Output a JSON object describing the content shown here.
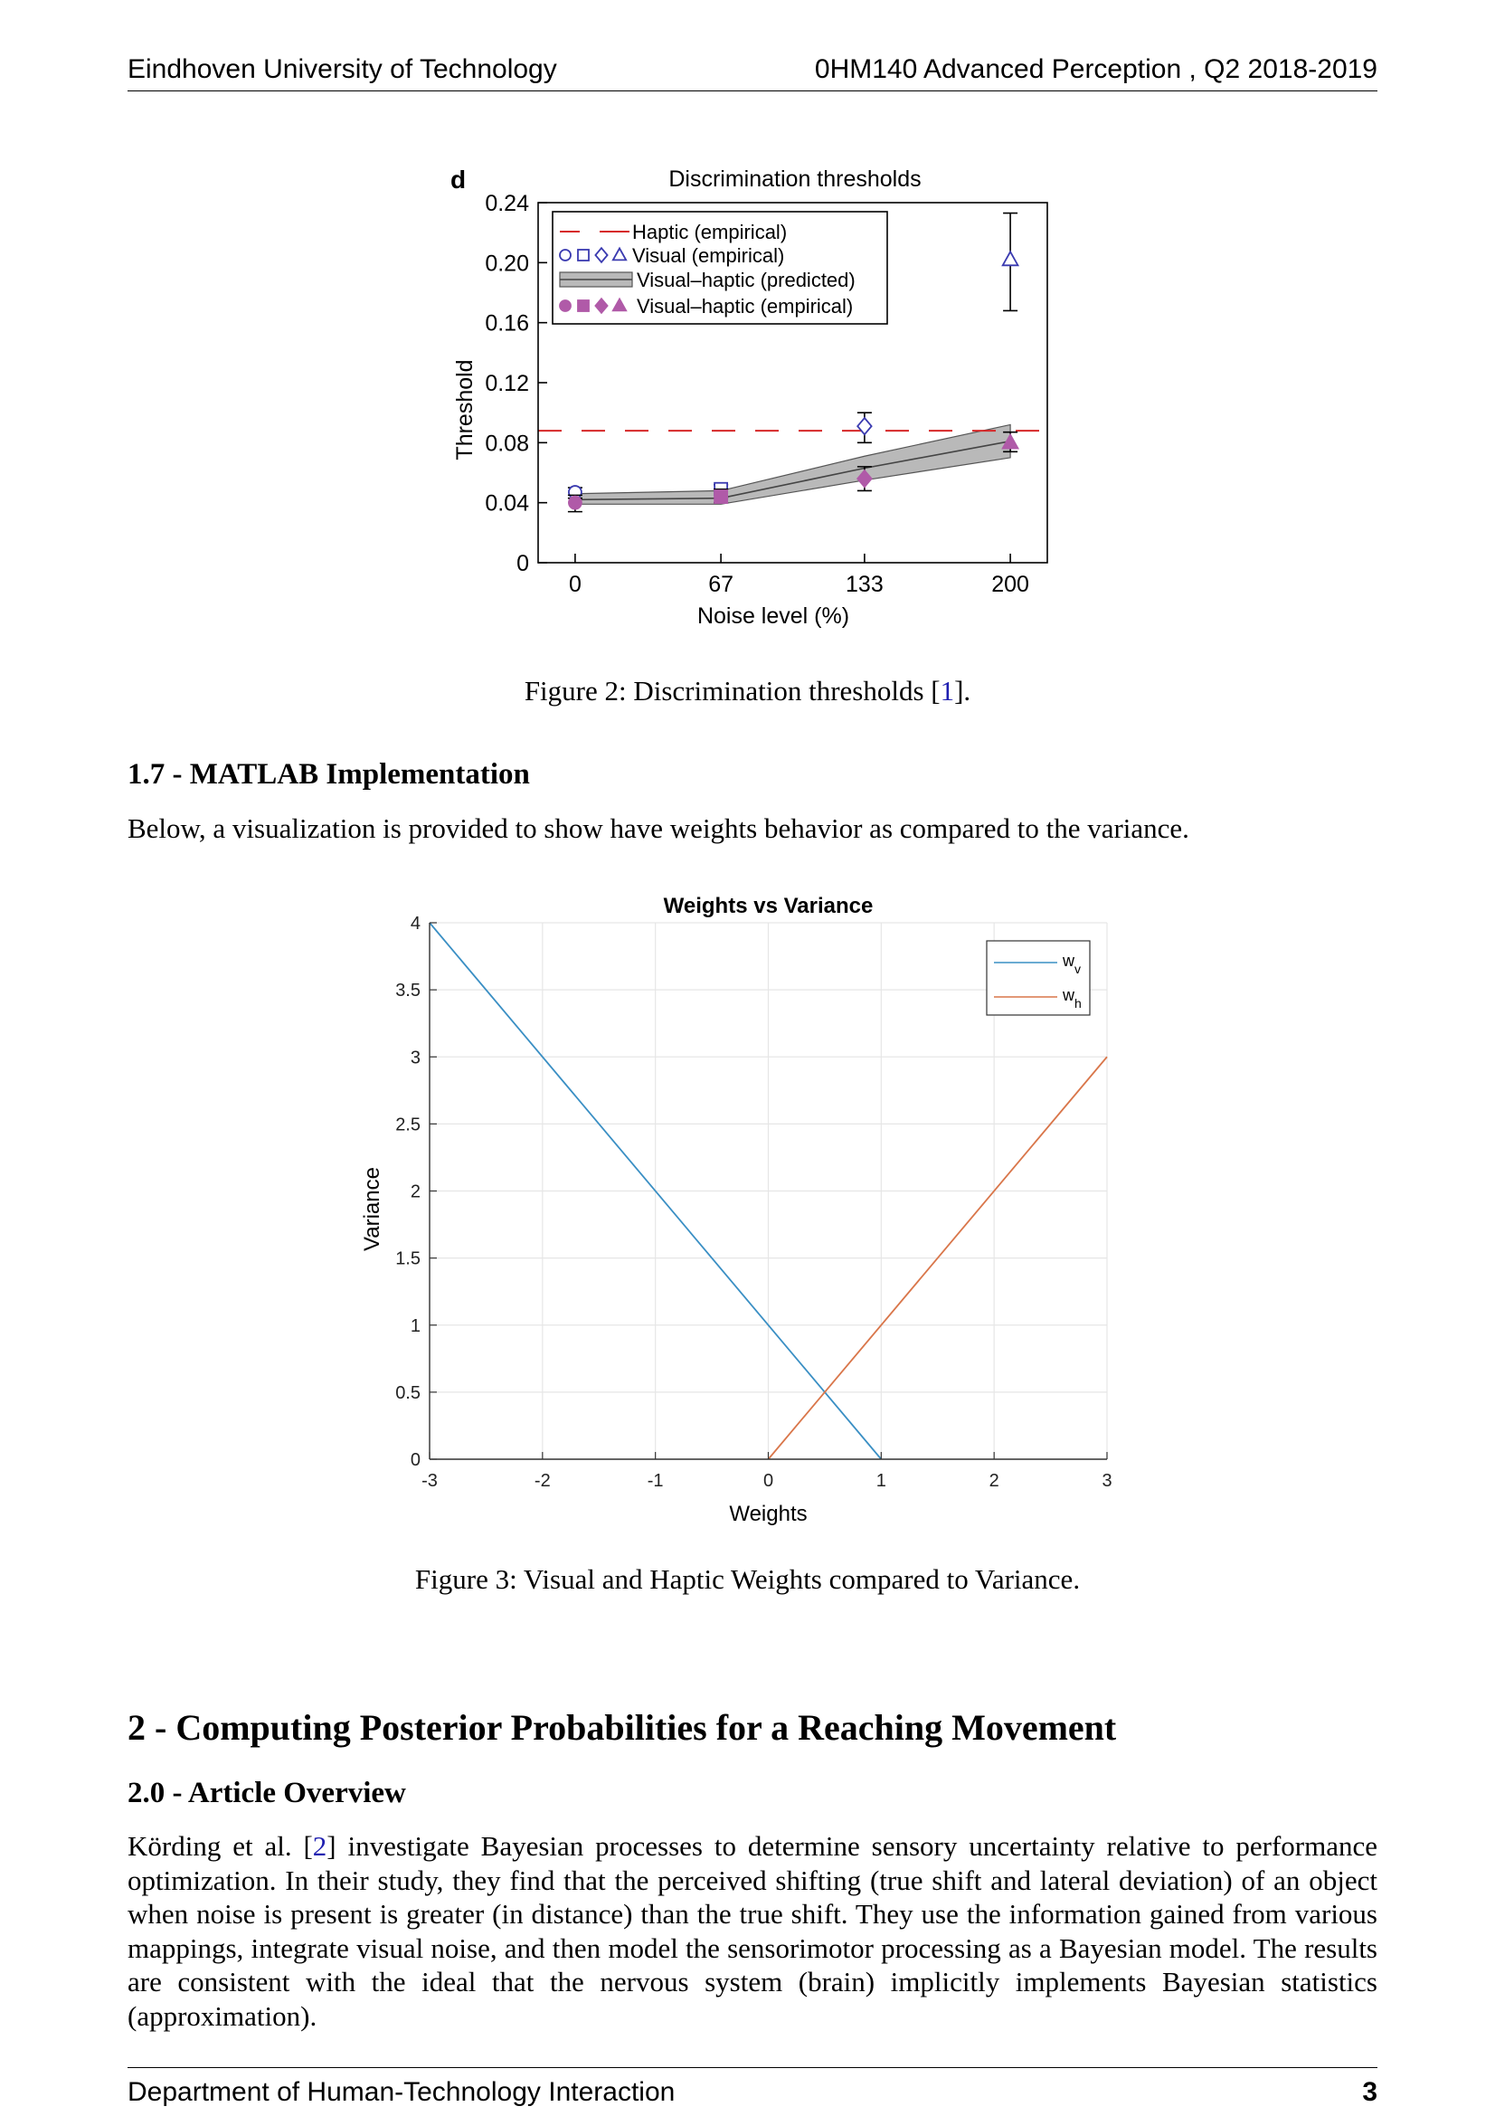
{
  "header": {
    "left": "Eindhoven University of Technology",
    "right": "0HM140 Advanced Perception , Q2 2018-2019"
  },
  "figure2": {
    "caption_prefix": "Figure 2: Discrimination thresholds [",
    "caption_ref": "1",
    "caption_suffix": "]."
  },
  "section_1_7": {
    "heading": "1.7 - MATLAB Implementation",
    "paragraph": "Below, a visualization is provided to show have weights behavior as compared to the variance."
  },
  "figure3": {
    "caption": "Figure 3: Visual and Haptic Weights compared to Variance."
  },
  "section_2": {
    "heading": "2 - Computing Posterior Probabilities for a Reaching Movement",
    "sub_heading": "2.0 - Article Overview",
    "para_start": "Körding et al. [",
    "para_ref": "2",
    "para_rest": "] investigate Bayesian processes to determine sensory uncertainty relative to performance optimization. In their study, they find that the perceived shifting (true shift and lateral deviation) of an object when noise is present is greater (in distance) than the true shift. They use the information gained from various mappings, integrate visual noise, and then model the sensorimotor processing as a Bayesian model. The results are consistent with the ideal that the nervous system (brain) implicitly implements Bayesian statistics (approximation)."
  },
  "footer": {
    "left": "Department of Human-Technology Interaction",
    "page": "3"
  },
  "colors": {
    "haptic_red": "#d62728",
    "visual_blue": "#3a3ab0",
    "vh_magenta": "#b05aa8",
    "band_grey": "#b9b9b9",
    "wv_blue": "#3a8fc4",
    "wh_orange": "#d9764a",
    "citation": "#1f1fb0"
  },
  "chart_data": [
    {
      "type": "scatter",
      "panel_label": "d",
      "title": "Discrimination thresholds",
      "xlabel": "Noise level (%)",
      "ylabel": "Threshold",
      "categories": [
        "0",
        "67",
        "133",
        "200"
      ],
      "x": [
        0,
        67,
        133,
        200
      ],
      "xlim": [
        -17,
        217
      ],
      "ylim": [
        0,
        0.24
      ],
      "yticks": [
        "0",
        "0.04",
        "0.08",
        "0.12",
        "0.16",
        "0.20",
        "0.24"
      ],
      "ytick_values": [
        0,
        0.04,
        0.08,
        0.12,
        0.16,
        0.2,
        0.24
      ],
      "legend_position": "top-left",
      "series": [
        {
          "name": "Haptic (empirical)",
          "kind": "hline",
          "value": 0.088
        },
        {
          "name": "Visual (empirical)",
          "kind": "points",
          "markers": [
            "circle",
            "square",
            "diamond",
            "triangle"
          ],
          "values": [
            0.047,
            0.049,
            0.091,
            0.202
          ],
          "err_low": [
            0.043,
            0.043,
            0.08,
            0.168
          ],
          "err_high": [
            0.05,
            0.052,
            0.1,
            0.233
          ]
        },
        {
          "name": "Visual–haptic (predicted)",
          "kind": "band",
          "x": [
            0,
            67,
            133,
            200
          ],
          "lower": [
            0.039,
            0.039,
            0.055,
            0.07
          ],
          "mid": [
            0.042,
            0.043,
            0.063,
            0.081
          ],
          "upper": [
            0.046,
            0.048,
            0.071,
            0.092
          ]
        },
        {
          "name": "Visual–haptic (empirical)",
          "kind": "points",
          "markers": [
            "circle",
            "square",
            "diamond",
            "triangle"
          ],
          "values": [
            0.04,
            0.044,
            0.056,
            0.08
          ],
          "err_low": [
            0.034,
            0.04,
            0.048,
            0.074
          ],
          "err_high": [
            0.045,
            0.049,
            0.064,
            0.087
          ]
        }
      ]
    },
    {
      "type": "line",
      "title": "Weights vs Variance",
      "xlabel": "Weights",
      "ylabel": "Variance",
      "xlim": [
        -3,
        3
      ],
      "ylim": [
        0,
        4
      ],
      "xticks": [
        "-3",
        "-2",
        "-1",
        "0",
        "1",
        "2",
        "3"
      ],
      "xtick_values": [
        -3,
        -2,
        -1,
        0,
        1,
        2,
        3
      ],
      "yticks": [
        "0",
        "0.5",
        "1",
        "1.5",
        "2",
        "2.5",
        "3",
        "3.5",
        "4"
      ],
      "ytick_values": [
        0,
        0.5,
        1,
        1.5,
        2,
        2.5,
        3,
        3.5,
        4
      ],
      "grid": true,
      "legend_position": "top-right",
      "series": [
        {
          "name": "w",
          "subscript": "v",
          "color": "#3a8fc4",
          "x": [
            -3,
            1
          ],
          "y": [
            4,
            0
          ]
        },
        {
          "name": "w",
          "subscript": "h",
          "color": "#d9764a",
          "x": [
            0,
            3
          ],
          "y": [
            0,
            3
          ]
        }
      ]
    }
  ]
}
